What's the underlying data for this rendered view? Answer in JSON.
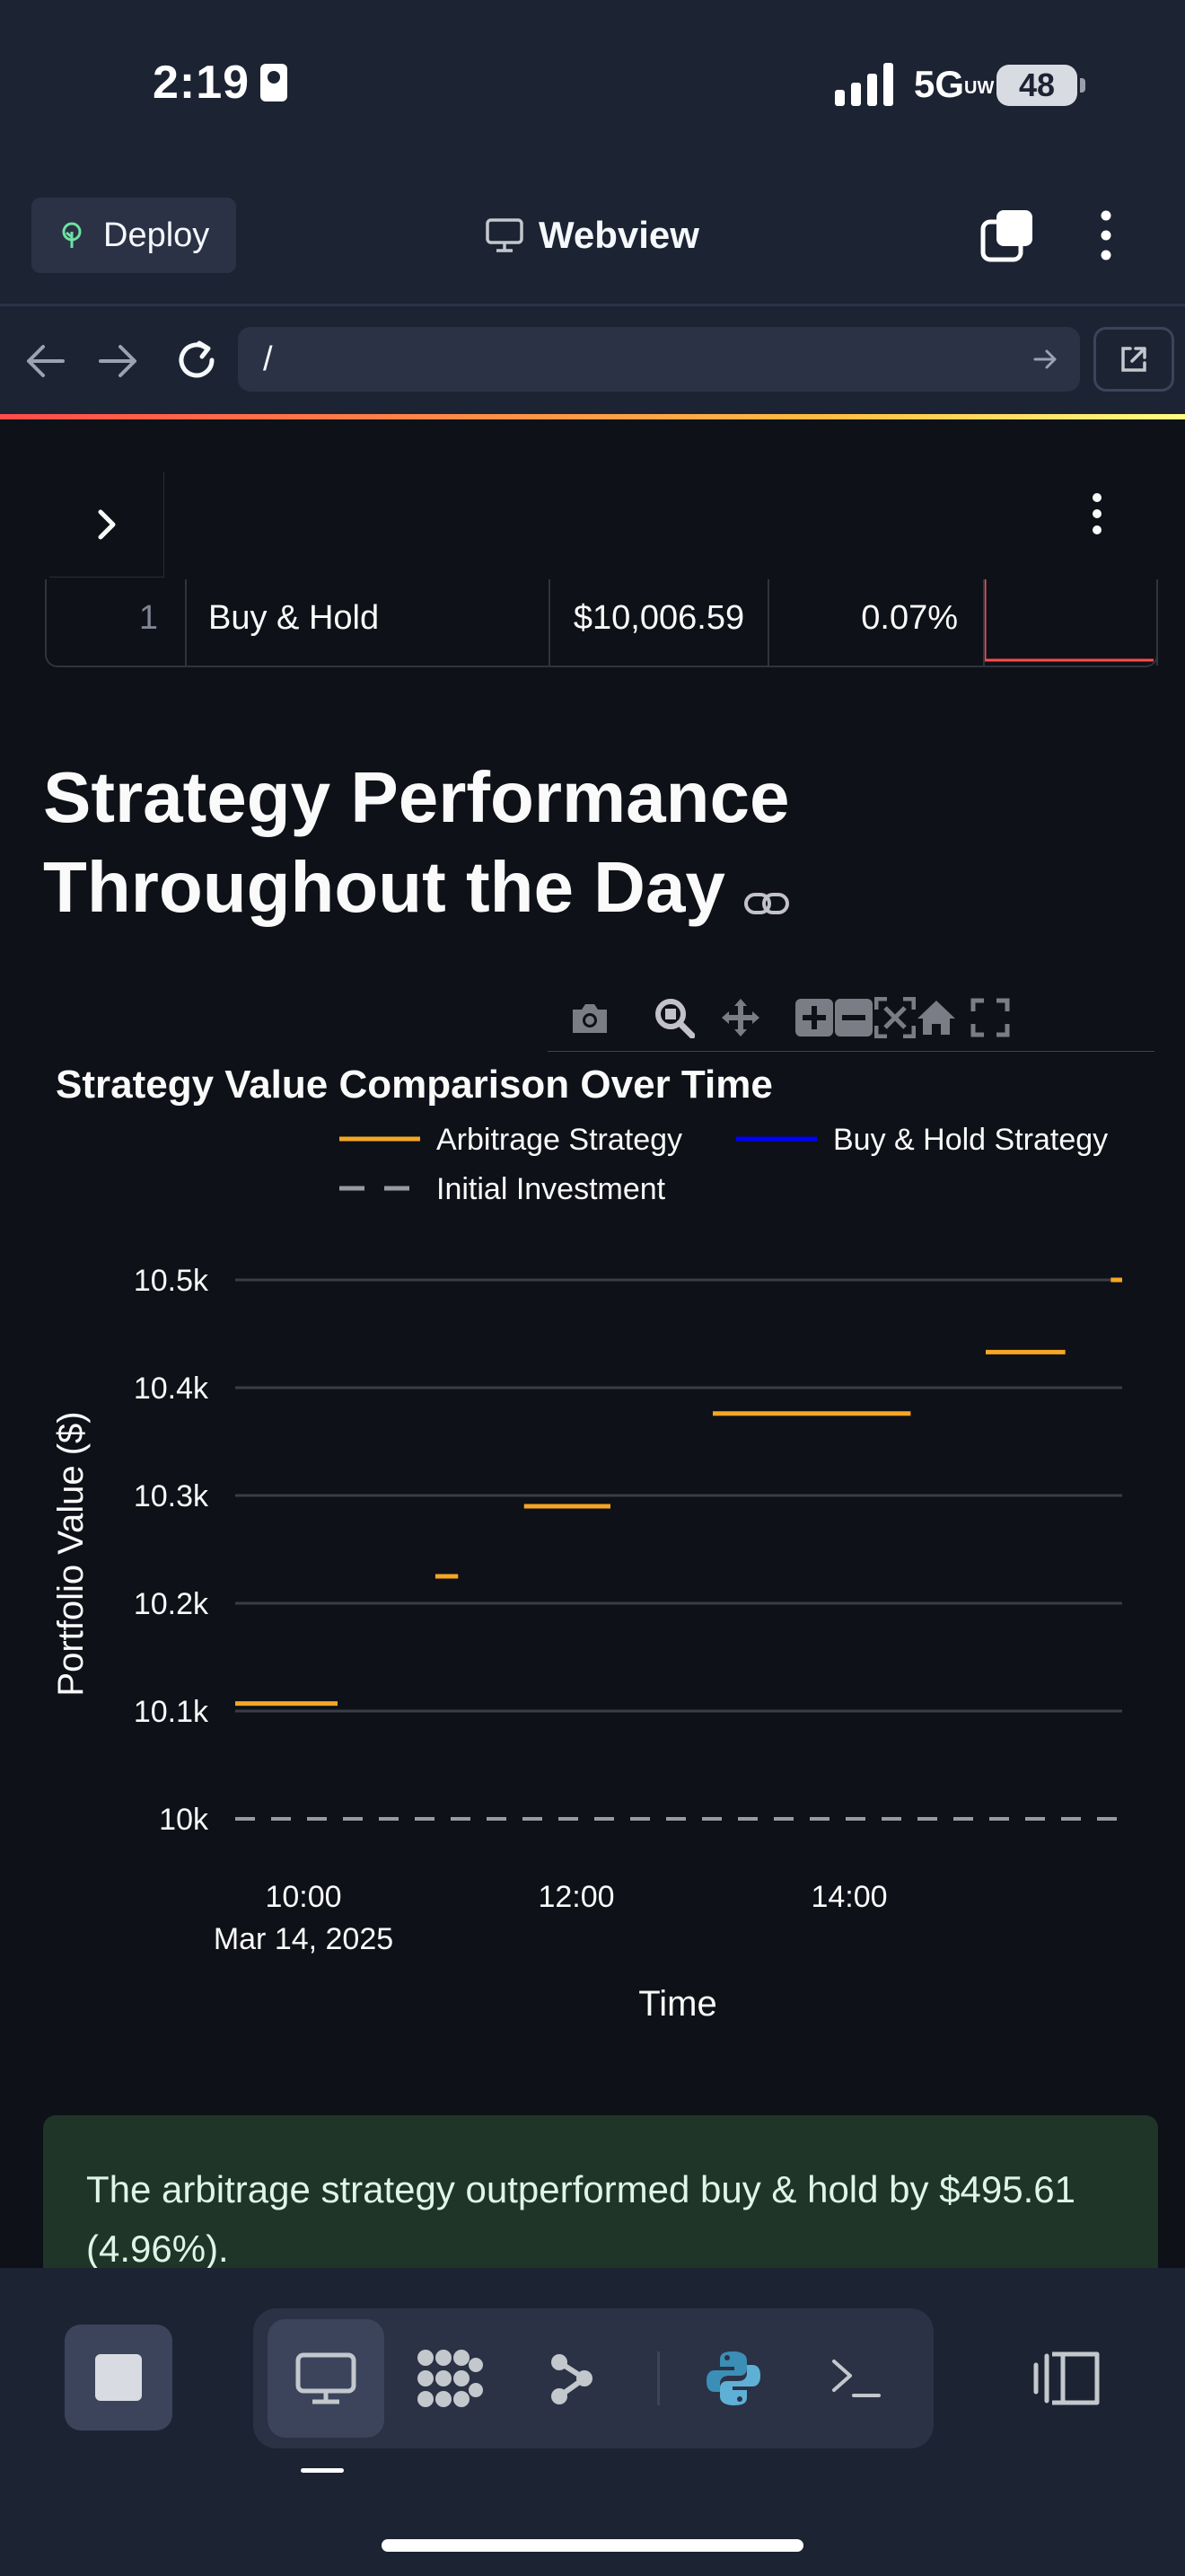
{
  "status": {
    "time": "2:19",
    "network": "5G",
    "network_suffix": "UW",
    "battery": "48"
  },
  "header": {
    "deploy_label": "Deploy",
    "title": "Webview"
  },
  "browser": {
    "url": "/"
  },
  "table": {
    "row": {
      "index": "1",
      "strategy": "Buy & Hold",
      "value": "$10,006.59",
      "return": "0.07%"
    }
  },
  "section": {
    "title": "Strategy Performance Throughout the Day"
  },
  "chart_data": {
    "type": "line",
    "title": "Strategy Value Comparison Over Time",
    "xlabel": "Time",
    "ylabel": "Portfolio Value ($)",
    "x_ticks": [
      "10:00",
      "12:00",
      "14:00"
    ],
    "x_tick_sublabel": "Mar 14, 2025",
    "y_ticks": [
      "10k",
      "10.1k",
      "10.2k",
      "10.3k",
      "10.4k",
      "10.5k"
    ],
    "ylim": [
      10000,
      10500
    ],
    "xlim": [
      "09:30",
      "16:00"
    ],
    "legend": {
      "placement": "top",
      "entries": [
        "Arbitrage Strategy",
        "Buy & Hold Strategy",
        "Initial Investment"
      ]
    },
    "series": [
      {
        "name": "Arbitrage Strategy",
        "color": "#f5a623",
        "style": "solid",
        "segments": [
          {
            "x": [
              "09:30",
              "10:15"
            ],
            "y": 10107
          },
          {
            "x": [
              "10:58",
              "11:08"
            ],
            "y": 10225
          },
          {
            "x": [
              "11:37",
              "12:15"
            ],
            "y": 10290
          },
          {
            "x": [
              "13:00",
              "14:27"
            ],
            "y": 10376
          },
          {
            "x": [
              "15:00",
              "15:35"
            ],
            "y": 10433
          },
          {
            "x": [
              "15:55",
              "16:00"
            ],
            "y": 10500
          }
        ]
      },
      {
        "name": "Buy & Hold Strategy",
        "color": "#0000ff",
        "style": "solid",
        "segments": []
      },
      {
        "name": "Initial Investment",
        "color": "#9a9aa0",
        "style": "dashed",
        "segments": [
          {
            "x": [
              "09:30",
              "16:00"
            ],
            "y": 10000
          }
        ]
      }
    ]
  },
  "summary": {
    "text": "The arbitrage strategy outperformed buy & hold by $495.61 (4.96%)."
  }
}
